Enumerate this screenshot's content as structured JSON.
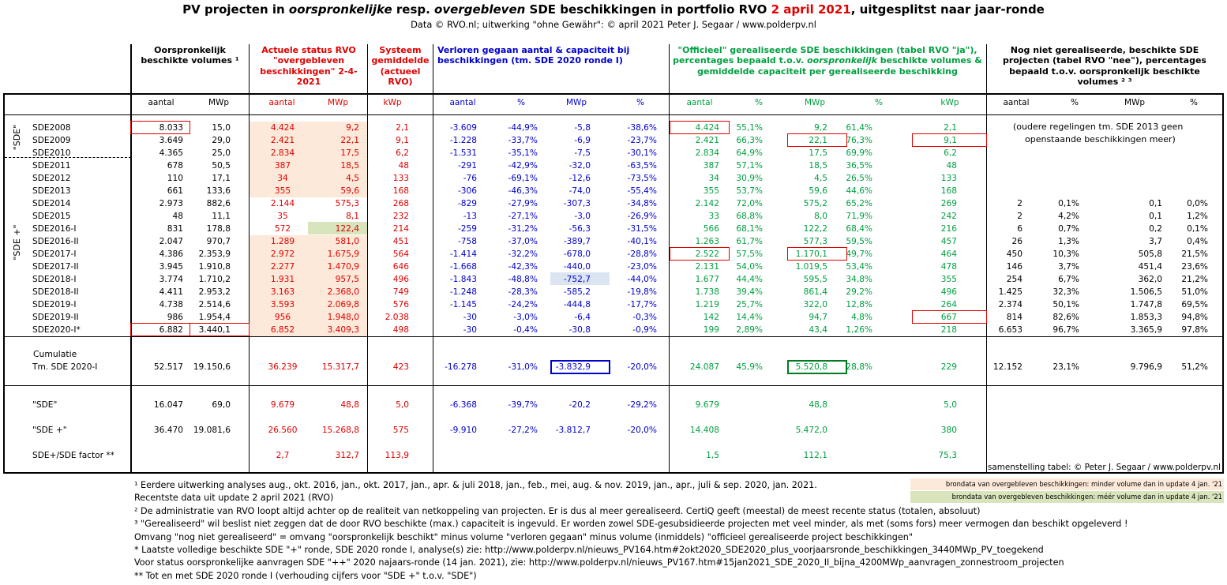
{
  "header": {
    "title_a": "PV projecten in",
    "title_b": "oorspronkelijke",
    "title_c": "resp.",
    "title_d": "overgebleven",
    "title_e": "SDE beschikkingen in portfolio RVO",
    "title_date": "2 april 2021",
    "title_f": ", uitgesplitst naar jaar-ronde",
    "subtitle": "Data © RVO.nl; uitwerking \"ohne Gewähr\": © april 2021 Peter J. Segaar / www.polderpv.nl"
  },
  "colors": {
    "red": "#e00000",
    "blue": "#0000cc",
    "green": "#00a040",
    "orange_bg": "#fde9d9",
    "green_bg": "#d8e4bc",
    "blue_bg": "#dbe5f1"
  },
  "groups": {
    "orig": "Oorspronkelijk beschikte volumes ¹",
    "actual": "Actuele status RVO \"overgebleven beschikkingen\" 2-4-2021",
    "systeem": "Systeem gemiddelde (actueel RVO)",
    "verloren": "Verloren gegaan aantal & capaciteit bij beschikkingen (tm. SDE 2020 ronde I)",
    "officieel_a": "\"Officieel\" gerealiseerde SDE beschikkingen (tabel RVO \"ja\"), percentages bepaald t.o.v.",
    "officieel_b": "oorspronkelijk",
    "officieel_c": "beschikte volumes & gemiddelde capaciteit per gerealiseerde beschikking",
    "nog_niet": "Nog niet gerealiseerde, beschikte SDE projecten (tabel RVO \"nee\"), percentages bepaald t.o.v. oorspronkelijk beschikte volumes ² ³"
  },
  "subheaders": [
    "aantal",
    "MWp",
    "aantal",
    "MWp",
    "kWp",
    "aantal",
    "%",
    "MWp",
    "%",
    "aantal",
    "%",
    "MWp",
    "%",
    "kWp",
    "aantal",
    "%",
    "MWp",
    "%"
  ],
  "side_labels": {
    "sde": "\"SDE\"",
    "sde_plus": "\"SDE +\""
  },
  "rows": [
    {
      "label": "SDE2008",
      "v": [
        "8.033",
        "15,0",
        "4.424",
        "9,2",
        "2,1",
        "-3.609",
        "-44,9%",
        "-5,8",
        "-38,6%",
        "4.424",
        "55,1%",
        "9,2",
        "61,4%",
        "2,1",
        "",
        "",
        "",
        ""
      ]
    },
    {
      "label": "SDE2009",
      "v": [
        "3.649",
        "29,0",
        "2.421",
        "22,1",
        "9,1",
        "-1.228",
        "-33,7%",
        "-6,9",
        "-23,7%",
        "2.421",
        "66,3%",
        "22,1",
        "76,3%",
        "9,1",
        "",
        "",
        "",
        ""
      ]
    },
    {
      "label": "SDE2010",
      "v": [
        "4.365",
        "25,0",
        "2.834",
        "17,5",
        "6,2",
        "-1.531",
        "-35,1%",
        "-7,5",
        "-30,1%",
        "2.834",
        "64,9%",
        "17,5",
        "69,9%",
        "6,2",
        "",
        "",
        "",
        ""
      ]
    },
    {
      "label": "SDE2011",
      "v": [
        "678",
        "50,5",
        "387",
        "18,5",
        "48",
        "-291",
        "-42,9%",
        "-32,0",
        "-63,5%",
        "387",
        "57,1%",
        "18,5",
        "36,5%",
        "48",
        "",
        "",
        "",
        ""
      ]
    },
    {
      "label": "SDE2012",
      "v": [
        "110",
        "17,1",
        "34",
        "4,5",
        "133",
        "-76",
        "-69,1%",
        "-12,6",
        "-73,5%",
        "34",
        "30,9%",
        "4,5",
        "26,5%",
        "133",
        "",
        "",
        "",
        ""
      ]
    },
    {
      "label": "SDE2013",
      "v": [
        "661",
        "133,6",
        "355",
        "59,6",
        "168",
        "-306",
        "-46,3%",
        "-74,0",
        "-55,4%",
        "355",
        "53,7%",
        "59,6",
        "44,6%",
        "168",
        "",
        "",
        "",
        ""
      ]
    },
    {
      "label": "SDE2014",
      "v": [
        "2.973",
        "882,6",
        "2.144",
        "575,3",
        "268",
        "-829",
        "-27,9%",
        "-307,3",
        "-34,8%",
        "2.142",
        "72,0%",
        "575,2",
        "65,2%",
        "269",
        "2",
        "0,1%",
        "0,1",
        "0,0%"
      ]
    },
    {
      "label": "SDE2015",
      "v": [
        "48",
        "11,1",
        "35",
        "8,1",
        "232",
        "-13",
        "-27,1%",
        "-3,0",
        "-26,9%",
        "33",
        "68,8%",
        "8,0",
        "71,9%",
        "242",
        "2",
        "4,2%",
        "0,1",
        "1,2%"
      ]
    },
    {
      "label": "SDE2016-I",
      "v": [
        "831",
        "178,8",
        "572",
        "122,4",
        "214",
        "-259",
        "-31,2%",
        "-56,3",
        "-31,5%",
        "566",
        "68,1%",
        "122,2",
        "68,4%",
        "216",
        "6",
        "0,7%",
        "0,2",
        "0,1%"
      ]
    },
    {
      "label": "SDE2016-II",
      "v": [
        "2.047",
        "970,7",
        "1.289",
        "581,0",
        "451",
        "-758",
        "-37,0%",
        "-389,7",
        "-40,1%",
        "1.263",
        "61,7%",
        "577,3",
        "59,5%",
        "457",
        "26",
        "1,3%",
        "3,7",
        "0,4%"
      ]
    },
    {
      "label": "SDE2017-I",
      "v": [
        "4.386",
        "2.353,9",
        "2.972",
        "1.675,9",
        "564",
        "-1.414",
        "-32,2%",
        "-678,0",
        "-28,8%",
        "2.522",
        "57,5%",
        "1.170,1",
        "49,7%",
        "464",
        "450",
        "10,3%",
        "505,8",
        "21,5%"
      ]
    },
    {
      "label": "SDE2017-II",
      "v": [
        "3.945",
        "1.910,8",
        "2.277",
        "1.470,9",
        "646",
        "-1.668",
        "-42,3%",
        "-440,0",
        "-23,0%",
        "2.131",
        "54,0%",
        "1.019,5",
        "53,4%",
        "478",
        "146",
        "3,7%",
        "451,4",
        "23,6%"
      ]
    },
    {
      "label": "SDE2018-I",
      "v": [
        "3.774",
        "1.710,2",
        "1.931",
        "957,5",
        "496",
        "-1.843",
        "-48,8%",
        "-752,7",
        "-44,0%",
        "1.677",
        "44,4%",
        "595,5",
        "34,8%",
        "355",
        "254",
        "6,7%",
        "362,0",
        "21,2%"
      ]
    },
    {
      "label": "SDE2018-II",
      "v": [
        "4.411",
        "2.953,2",
        "3.163",
        "2.368,0",
        "749",
        "-1.248",
        "-28,3%",
        "-585,2",
        "-19,8%",
        "1.738",
        "39,4%",
        "861,4",
        "29,2%",
        "496",
        "1.425",
        "32,3%",
        "1.506,5",
        "51,0%"
      ]
    },
    {
      "label": "SDE2019-I",
      "v": [
        "4.738",
        "2.514,6",
        "3.593",
        "2.069,8",
        "576",
        "-1.145",
        "-24,2%",
        "-444,8",
        "-17,7%",
        "1.219",
        "25,7%",
        "322,0",
        "12,8%",
        "264",
        "2.374",
        "50,1%",
        "1.747,8",
        "69,5%"
      ]
    },
    {
      "label": "SDE2019-II",
      "v": [
        "986",
        "1.954,4",
        "956",
        "1.948,0",
        "2.038",
        "-30",
        "-3,0%",
        "-6,4",
        "-0,3%",
        "142",
        "14,4%",
        "94,7",
        "4,8%",
        "667",
        "814",
        "82,6%",
        "1.853,3",
        "94,8%"
      ]
    },
    {
      "label": "SDE2020-I*",
      "v": [
        "6.882",
        "3.440,1",
        "6.852",
        "3.409,3",
        "498",
        "-30",
        "-0,4%",
        "-30,8",
        "-0,9%",
        "199",
        "2,89%",
        "43,4",
        "1,26%",
        "218",
        "6.653",
        "96,7%",
        "3.365,9",
        "97,8%"
      ]
    }
  ],
  "old_note_a": "(oudere regelingen tm. SDE 2013 geen",
  "old_note_b": "openstaande beschikkingen meer)",
  "cumulatie": {
    "label_a": "Cumulatie",
    "label_b": "Tm. SDE 2020-I",
    "v": [
      "52.517",
      "19.150,6",
      "36.239",
      "15.317,7",
      "423",
      "-16.278",
      "-31,0%",
      "-3.832,9",
      "-20,0%",
      "24.087",
      "45,9%",
      "5.520,8",
      "28,8%",
      "229",
      "12.152",
      "23,1%",
      "9.796,9",
      "51,2%"
    ]
  },
  "summary": [
    {
      "label": "\"SDE\"",
      "v": [
        "16.047",
        "69,0",
        "9.679",
        "48,8",
        "5,0",
        "-6.368",
        "-39,7%",
        "-20,2",
        "-29,2%",
        "9.679",
        "",
        "48,8",
        "",
        "5,0",
        "",
        "",
        "",
        ""
      ]
    },
    {
      "label": "\"SDE +\"",
      "v": [
        "36.470",
        "19.081,6",
        "26.560",
        "15.268,8",
        "575",
        "-9.910",
        "-27,2%",
        "-3.812,7",
        "-20,0%",
        "14.408",
        "",
        "5.472,0",
        "",
        "380",
        "",
        "",
        "",
        ""
      ]
    },
    {
      "label": "SDE+/SDE factor **",
      "v": [
        "",
        "",
        "2,7",
        "312,7",
        "113,9",
        "",
        "",
        "",
        "",
        "1,5",
        "",
        "112,1",
        "",
        "75,3",
        "",
        "",
        "",
        ""
      ]
    }
  ],
  "credit": "samenstelling tabel: © Peter J. Segaar / www.polderpv.nl",
  "legend": {
    "orange": "brondata van overgebleven beschikkingen: minder volume dan in update 4 jan. '21",
    "green": "brondata van overgebleven beschikkingen: méér volume dan in update 4 jan. '21"
  },
  "footnotes": [
    "¹ Eerdere uitwerking analyses aug., okt. 2016, jan., okt.  2017, jan., apr. & juli 2018, jan., feb., mei, aug. & nov. 2019, jan., apr., juli & sep. 2020, jan. 2021.",
    "   Recentste data uit update 2 april 2021 (RVO)",
    "² De administratie van RVO loopt altijd achter op de realiteit van netkoppeling van projecten. Er is dus al meer gerealiseerd. CertiQ geeft (meestal) de meest recente status (totalen, absoluut)",
    "³ \"Gerealiseerd\" wil beslist niet zeggen dat de door RVO beschikte (max.) capaciteit is ingevuld. Er worden zowel SDE-gesubsidieerde projecten met veel minder, als met (soms fors) meer  vermogen dan beschikt opgeleverd !",
    "Omvang \"nog niet gerealiseerd\" = omvang \"oorspronkelijk beschikt\" minus volume \"verloren gegaan\" minus volume (inmiddels) \"officieel gerealiseerde project beschikkingen\"",
    "* Laatste volledige beschikte SDE \"+\" ronde, SDE 2020 ronde I, analyse(s) zie: http://www.polderpv.nl/nieuws_PV164.htm#2okt2020_SDE2020_plus_voorjaarsronde_beschikkingen_3440MWp_PV_toegekend",
    "Voor status oorspronkelijke aanvragen SDE \"++\" 2020 najaars-ronde (14 jan. 2021), zie: http://www.polderpv.nl/nieuws_PV167.htm#15jan2021_SDE_2020_II_bijna_4200MWp_aanvragen_zonnestroom_projecten",
    "** Tot en met SDE 2020 ronde I (verhouding cijfers voor \"SDE +\" t.o.v. \"SDE\")"
  ],
  "chart_data": {
    "type": "table",
    "title": "PV projecten in oorspronkelijke resp. overgebleven SDE beschikkingen in portfolio RVO 2 april 2021, uitgesplitst naar jaar-ronde",
    "columns": [
      "aantal",
      "MWp",
      "aantal",
      "MWp",
      "kWp",
      "aantal",
      "%",
      "MWp",
      "%",
      "aantal",
      "%",
      "MWp",
      "%",
      "kWp",
      "aantal",
      "%",
      "MWp",
      "%"
    ],
    "row_labels": [
      "SDE2008",
      "SDE2009",
      "SDE2010",
      "SDE2011",
      "SDE2012",
      "SDE2013",
      "SDE2014",
      "SDE2015",
      "SDE2016-I",
      "SDE2016-II",
      "SDE2017-I",
      "SDE2017-II",
      "SDE2018-I",
      "SDE2018-II",
      "SDE2019-I",
      "SDE2019-II",
      "SDE2020-I*"
    ]
  }
}
